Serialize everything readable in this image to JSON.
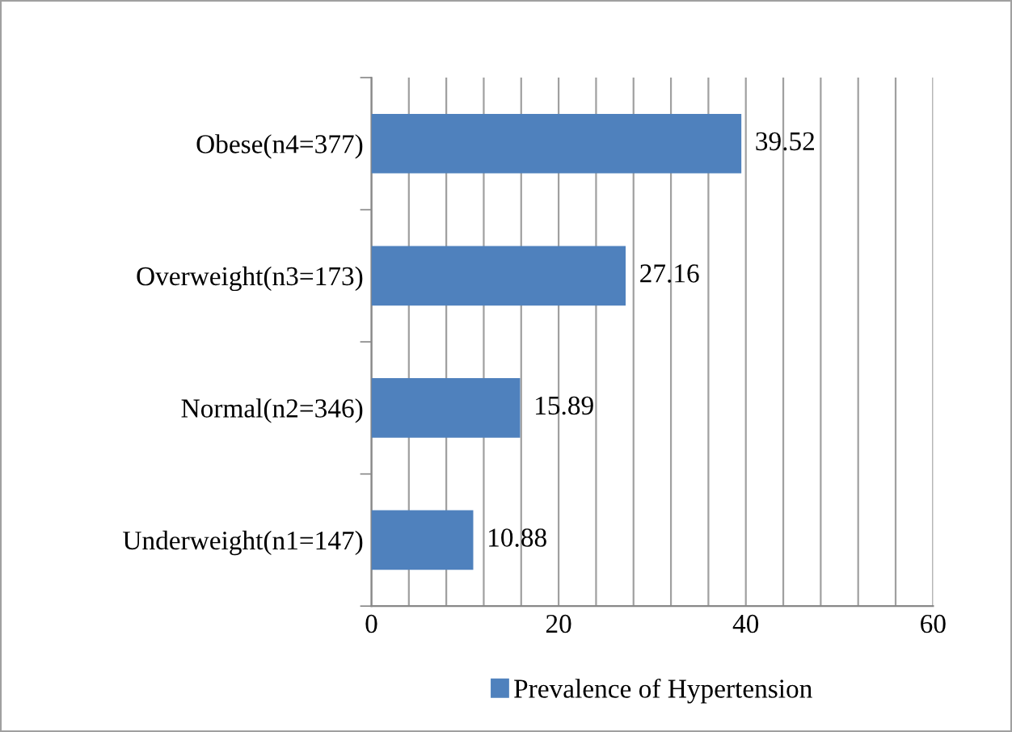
{
  "chart_data": {
    "type": "bar",
    "orientation": "horizontal",
    "categories": [
      "Obese(n4=377)",
      "Overweight(n3=173)",
      "Normal(n2=346)",
      "Underweight(n1=147)"
    ],
    "series": [
      {
        "name": "Prevalence of Hypertension",
        "color": "#4f81bd",
        "values": [
          39.52,
          27.16,
          15.89,
          10.88
        ]
      }
    ],
    "xlim": [
      0,
      60
    ],
    "xticks": [
      0,
      {
        "value": 4,
        "label": null
      },
      {
        "value": 8,
        "label": null
      },
      {
        "value": 12,
        "label": null
      },
      {
        "value": 16,
        "label": null
      },
      20,
      {
        "value": 24,
        "label": null
      },
      {
        "value": 28,
        "label": null
      },
      {
        "value": 32,
        "label": null
      },
      {
        "value": 36,
        "label": null
      },
      40,
      {
        "value": 44,
        "label": null
      },
      {
        "value": 48,
        "label": null
      },
      {
        "value": 52,
        "label": null
      },
      {
        "value": 56,
        "label": null
      },
      60
    ],
    "grid": "x",
    "data_labels": true,
    "legend": "bottom"
  }
}
